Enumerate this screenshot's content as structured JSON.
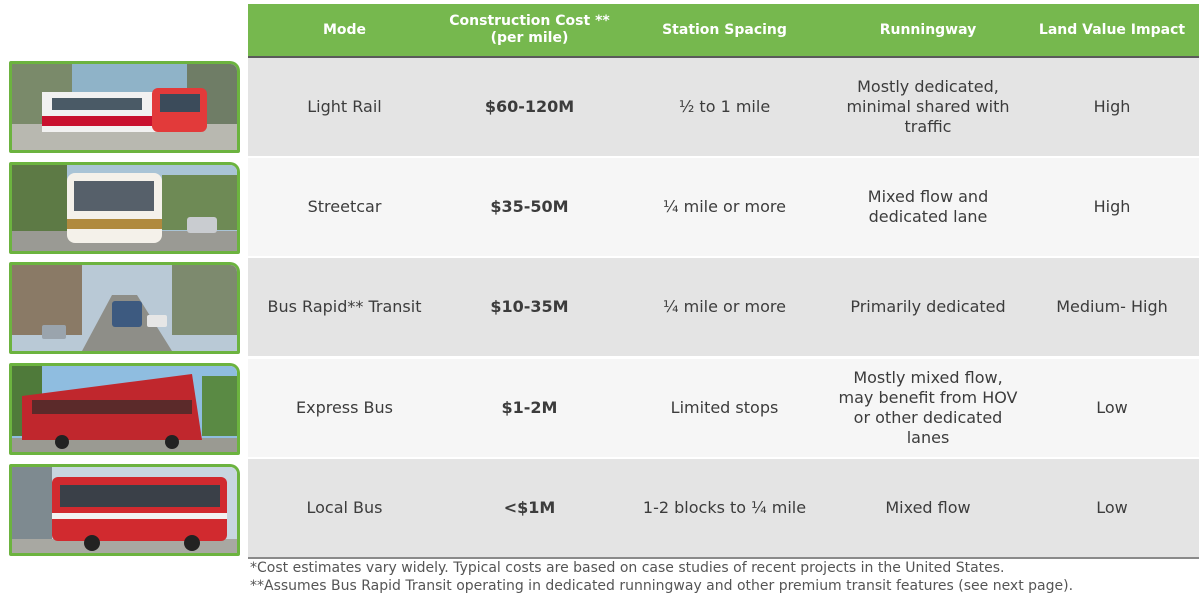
{
  "header": {
    "mode": "Mode",
    "cost_line1": "Construction Cost **",
    "cost_line2": "(per mile)",
    "spacing": "Station Spacing",
    "runningway": "Runningway",
    "land": "Land Value Impact"
  },
  "rows": [
    {
      "mode": "Light Rail",
      "cost": "$60-120M",
      "spacing": "½ to 1 mile",
      "runningway": "Mostly dedicated, minimal shared with traffic",
      "land": "High",
      "image": "light-rail-photo"
    },
    {
      "mode": "Streetcar",
      "cost": "$35-50M",
      "spacing": "¼ mile or more",
      "runningway": "Mixed flow and dedicated lane",
      "land": "High",
      "image": "streetcar-photo"
    },
    {
      "mode": "Bus Rapid** Transit",
      "cost": "$10-35M",
      "spacing": "¼ mile or more",
      "runningway": "Primarily dedicated",
      "land": "Medium- High",
      "image": "brt-photo"
    },
    {
      "mode": "Express Bus",
      "cost": "$1-2M",
      "spacing": "Limited stops",
      "runningway": "Mostly mixed flow, may benefit from HOV or other dedicated lanes",
      "land": "Low",
      "image": "express-bus-photo"
    },
    {
      "mode": "Local Bus",
      "cost": "<$1M",
      "spacing": "1-2 blocks to ¼ mile",
      "runningway": "Mixed flow",
      "land": "Low",
      "image": "local-bus-photo"
    }
  ],
  "footnotes": {
    "note1": "*Cost estimates vary widely. Typical costs are based on case studies of recent projects in the United States.",
    "note2": "**Assumes Bus Rapid Transit operating in dedicated runningway and other premium transit features (see next page)."
  },
  "colors": {
    "header_green": "#76b84e",
    "frame_green": "#6cb33f",
    "row_shade": "#e4e4e4"
  }
}
